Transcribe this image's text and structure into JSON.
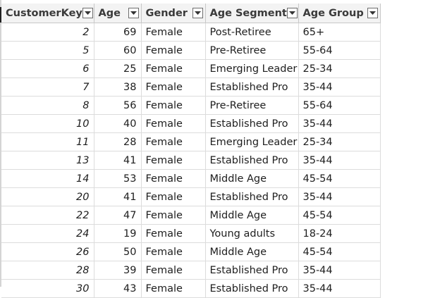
{
  "columns": [
    {
      "label": "CustomerKey"
    },
    {
      "label": "Age"
    },
    {
      "label": "Gender"
    },
    {
      "label": "Age Segment"
    },
    {
      "label": "Age Group"
    }
  ],
  "rows": [
    {
      "key": "2",
      "age": "69",
      "gender": "Female",
      "segment": "Post-Retiree",
      "group": "65+"
    },
    {
      "key": "5",
      "age": "60",
      "gender": "Female",
      "segment": "Pre-Retiree",
      "group": "55-64"
    },
    {
      "key": "6",
      "age": "25",
      "gender": "Female",
      "segment": "Emerging Leader",
      "group": "25-34"
    },
    {
      "key": "7",
      "age": "38",
      "gender": "Female",
      "segment": "Established Pro",
      "group": "35-44"
    },
    {
      "key": "8",
      "age": "56",
      "gender": "Female",
      "segment": "Pre-Retiree",
      "group": "55-64"
    },
    {
      "key": "10",
      "age": "40",
      "gender": "Female",
      "segment": "Established Pro",
      "group": "35-44"
    },
    {
      "key": "11",
      "age": "28",
      "gender": "Female",
      "segment": "Emerging Leader",
      "group": "25-34"
    },
    {
      "key": "13",
      "age": "41",
      "gender": "Female",
      "segment": "Established Pro",
      "group": "35-44"
    },
    {
      "key": "14",
      "age": "53",
      "gender": "Female",
      "segment": "Middle Age",
      "group": "45-54"
    },
    {
      "key": "20",
      "age": "41",
      "gender": "Female",
      "segment": "Established Pro",
      "group": "35-44"
    },
    {
      "key": "22",
      "age": "47",
      "gender": "Female",
      "segment": "Middle Age",
      "group": "45-54"
    },
    {
      "key": "24",
      "age": "19",
      "gender": "Female",
      "segment": "Young adults",
      "group": "18-24"
    },
    {
      "key": "26",
      "age": "50",
      "gender": "Female",
      "segment": "Middle Age",
      "group": "45-54"
    },
    {
      "key": "28",
      "age": "39",
      "gender": "Female",
      "segment": "Established Pro",
      "group": "35-44"
    },
    {
      "key": "30",
      "age": "43",
      "gender": "Female",
      "segment": "Established Pro",
      "group": "35-44"
    }
  ],
  "icons": {
    "filter": "dropdown-arrow-icon"
  },
  "colors": {
    "header_bg": "#f3f3f3",
    "grid_line": "#dcdcdc"
  }
}
